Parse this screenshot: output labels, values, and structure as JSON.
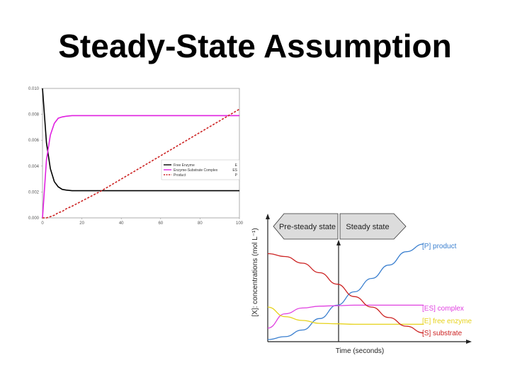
{
  "slide": {
    "title": "Steady-State Assumption"
  },
  "chart_data": [
    {
      "type": "line",
      "title": "",
      "xlabel": "",
      "ylabel": "",
      "xlim": [
        0,
        100
      ],
      "ylim": [
        0,
        0.01
      ],
      "x_ticks": [
        "0",
        "20",
        "40",
        "60",
        "80",
        "100"
      ],
      "y_ticks": [
        "0.000",
        "0.002",
        "0.004",
        "0.006",
        "0.008",
        "0.010"
      ],
      "legend_position": "center-right",
      "x": [
        0,
        2,
        4,
        6,
        8,
        10,
        12,
        15,
        20,
        30,
        40,
        60,
        80,
        100
      ],
      "series": [
        {
          "name": "Free Enzyme",
          "symbol": "E",
          "color": "#000000",
          "style": "solid",
          "values": [
            0.01,
            0.0058,
            0.0038,
            0.0028,
            0.0024,
            0.0022,
            0.00215,
            0.0021,
            0.0021,
            0.0021,
            0.0021,
            0.0021,
            0.0021,
            0.0021
          ]
        },
        {
          "name": "Enzyme-Substrate Complex",
          "symbol": "ES",
          "color": "#e020e0",
          "style": "solid",
          "values": [
            0.0,
            0.0045,
            0.0064,
            0.0073,
            0.0077,
            0.0078,
            0.00785,
            0.0079,
            0.0079,
            0.0079,
            0.0079,
            0.0079,
            0.0079,
            0.0079
          ]
        },
        {
          "name": "Product",
          "symbol": "P",
          "color": "#cc2222",
          "style": "dashed",
          "values": [
            0.0,
            0.0,
            0.0001,
            0.0002,
            0.0004,
            0.0005,
            0.0007,
            0.0009,
            0.0013,
            0.0021,
            0.003,
            0.0048,
            0.0066,
            0.0084
          ]
        }
      ]
    },
    {
      "type": "line",
      "title": "",
      "xlabel": "Time (seconds)",
      "ylabel": "[X]: concentrations (mol L⁻¹)",
      "phases": [
        "Pre-steady state",
        "Steady state"
      ],
      "series": [
        {
          "name": "[P] product",
          "color": "#3a7fcf",
          "values": [
            0.0,
            0.03,
            0.1,
            0.22,
            0.36,
            0.5,
            0.64,
            0.78,
            0.92,
            1.0
          ]
        },
        {
          "name": "[ES] complex",
          "color": "#e040e0",
          "values": [
            0.12,
            0.27,
            0.33,
            0.35,
            0.355,
            0.36,
            0.36,
            0.36,
            0.36,
            0.36
          ]
        },
        {
          "name": "[E] free enzyme",
          "color": "#e6d21a",
          "values": [
            0.34,
            0.24,
            0.2,
            0.17,
            0.165,
            0.16,
            0.16,
            0.16,
            0.16,
            0.16
          ]
        },
        {
          "name": "[S] substrate",
          "color": "#cc2222",
          "values": [
            0.9,
            0.87,
            0.8,
            0.7,
            0.58,
            0.45,
            0.34,
            0.23,
            0.14,
            0.07
          ]
        }
      ]
    }
  ]
}
